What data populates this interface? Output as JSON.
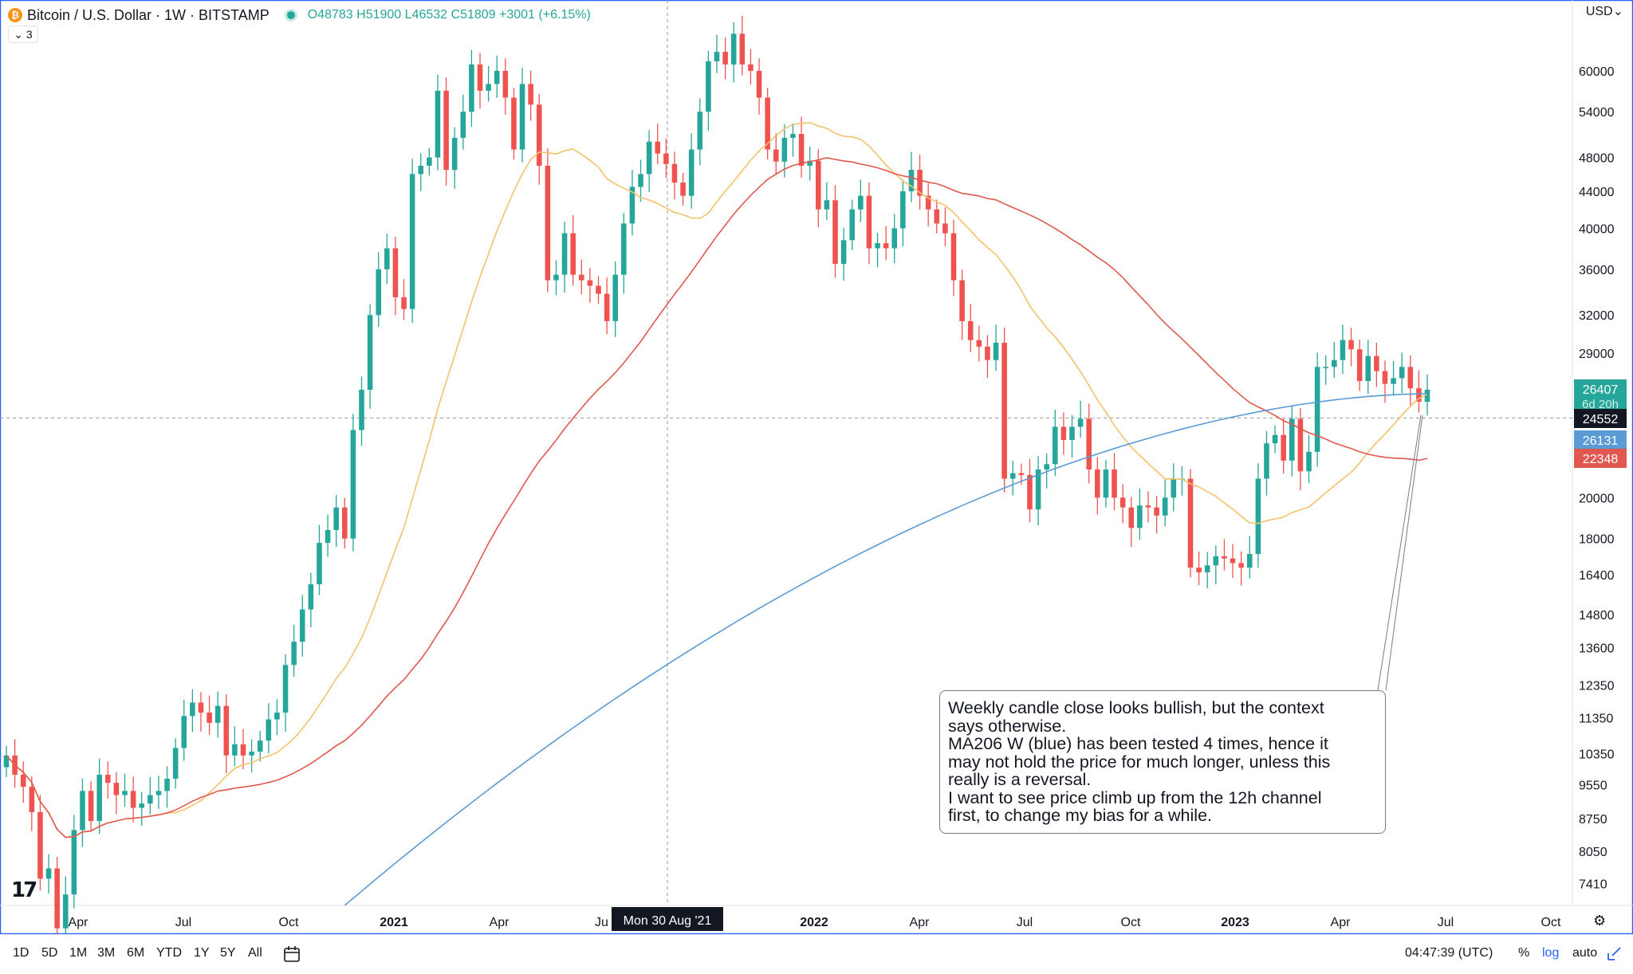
{
  "header": {
    "symbol_title": "Bitcoin / U.S. Dollar · 1W · BITSTAMP",
    "coin_glyph": "₿",
    "ohlc": {
      "o_label": "O",
      "o": "48783",
      "h_label": "H",
      "h": "51900",
      "l_label": "L",
      "l": "46532",
      "c_label": "C",
      "c": "51809",
      "change": "+3001 (+6.15%)"
    },
    "indicator_toggle": "⌄ 3",
    "currency": "USD⌄"
  },
  "colors": {
    "up": "#26a69a",
    "down": "#ef5350",
    "ma_yellow": "#f5c26b",
    "ma_red": "#e0584f",
    "ma_blue": "#5b9bd5",
    "accent": "#2962ff"
  },
  "chart_data": {
    "type": "candlestick",
    "scale": "log",
    "ylim": [
      7000,
      72000
    ],
    "y_ticks": [
      7410,
      8050,
      8750,
      9550,
      10350,
      11350,
      12350,
      13600,
      14800,
      16400,
      18000,
      20000,
      24552,
      29000,
      32000,
      36000,
      40000,
      44000,
      48000,
      54000,
      60000
    ],
    "x_labels": [
      "Apr",
      "Jul",
      "Oct",
      "2021",
      "Apr",
      "Jul",
      "2022",
      "Apr",
      "Jul",
      "Oct",
      "2023",
      "Apr",
      "Jul",
      "Oct"
    ],
    "crosshair": {
      "date_label": "Mon 30 Aug '21",
      "price_label": "24552"
    },
    "price_labels": [
      {
        "value": "26407",
        "sub": "6d 20h",
        "color": "#26a69a"
      },
      {
        "value": "26131",
        "color": "#5b9bd5"
      },
      {
        "value": "22348",
        "color": "#e0584f"
      }
    ],
    "series": [
      {
        "name": "BTCUSD",
        "closes": [
          10300,
          9800,
          9500,
          8900,
          7500,
          7700,
          6600,
          7200,
          8500,
          9400,
          8700,
          9800,
          9600,
          9300,
          9400,
          9000,
          9100,
          9300,
          9400,
          9700,
          10500,
          11400,
          11800,
          11500,
          11200,
          11700,
          10300,
          10600,
          10300,
          10400,
          10700,
          11300,
          11500,
          13000,
          13800,
          15000,
          16000,
          17800,
          18400,
          19500,
          18000,
          23800,
          26400,
          32000,
          36000,
          38000,
          33500,
          32500,
          46000,
          47000,
          48000,
          57000,
          46500,
          50500,
          54000,
          61000,
          57000,
          58000,
          60000,
          56000,
          49000,
          58000,
          55000,
          47000,
          35000,
          35500,
          39500,
          35500,
          35000,
          34500,
          33800,
          31500,
          35500,
          40500,
          44500,
          46000,
          50000,
          48500,
          47200,
          45000,
          43500,
          49000,
          54000,
          61500,
          63000,
          61000,
          66000,
          61000,
          60000,
          56000,
          49000,
          47500,
          50500,
          51000,
          47000,
          47600,
          42000,
          43000,
          36500,
          38800,
          42000,
          43500,
          38000,
          38500,
          38000,
          40000,
          44000,
          46500,
          43500,
          42000,
          40500,
          39500,
          35000,
          31500,
          30000,
          29500,
          28500,
          29800,
          21000,
          21300,
          21200,
          19400,
          21500,
          21800,
          24000,
          23200,
          24000,
          24500,
          21500,
          20000,
          21500,
          20000,
          19500,
          18500,
          19600,
          19500,
          19100,
          20000,
          21000,
          21000,
          16700,
          16500,
          16800,
          17200,
          17100,
          16900,
          16700,
          17300,
          21000,
          23000,
          23500,
          22000,
          24500,
          21400,
          22500,
          28000,
          28000,
          28500,
          30000,
          29300,
          27000,
          28800,
          27700,
          26800,
          27200,
          28000,
          26500,
          25600,
          26407
        ]
      },
      {
        "name": "",
        "role": "ma-yellow"
      },
      {
        "name": "",
        "role": "ma-red"
      },
      {
        "name": "MA206 W (blue)",
        "role": "ma-blue"
      }
    ],
    "annotation": {
      "lines": [
        "Weekly candle close looks bullish, but the context",
        "says otherwise.",
        "MA206 W (blue) has been tested 4 times, hence it",
        "may not hold the price for much longer, unless this",
        "really is a reversal.",
        "I want to see price climb up from the 12h channel",
        "first, to change my bias for a while."
      ]
    }
  },
  "bottom_bar": {
    "timeframes": [
      "1D",
      "5D",
      "1M",
      "3M",
      "6M",
      "YTD",
      "1Y",
      "5Y",
      "All"
    ],
    "calendar_icon": "calendar-icon",
    "clock": "04:47:39 (UTC)",
    "percent": "%",
    "log": "log",
    "auto": "auto",
    "gear_icon": "gear-icon"
  }
}
